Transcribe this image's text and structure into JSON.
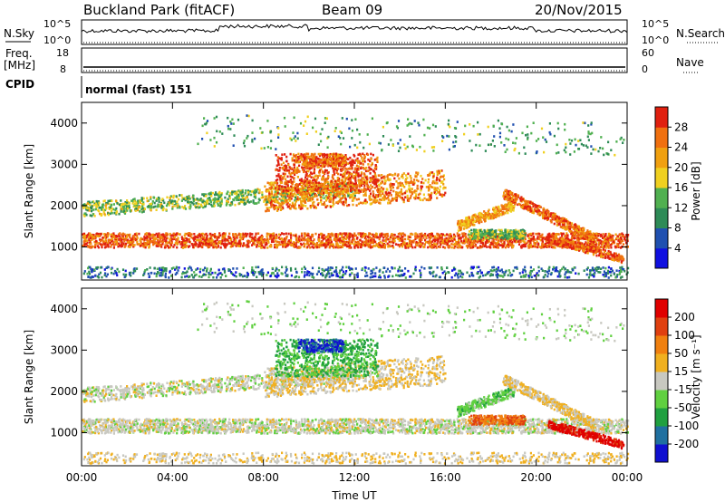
{
  "header": {
    "station": "Buckland Park (fitACF)",
    "beam": "Beam 09",
    "date": "20/Nov/2015"
  },
  "strip": {
    "nsky_label": "N.Sky",
    "nsky_ticks": [
      "10^5",
      "10^0"
    ],
    "nsearch_label": "N.Search",
    "nsearch_ticks": [
      "10^5",
      "10^0"
    ],
    "freq_label": "Freq.",
    "freq_unit": "[MHz]",
    "freq_ticks": [
      "18",
      "8"
    ],
    "nave_label": "Nave",
    "nave_ticks": [
      "60",
      "0"
    ],
    "cpid_label": "CPID",
    "cpid_value": "normal (fast) 151"
  },
  "chart_data": [
    {
      "type": "heatmap",
      "name": "power",
      "ylabel": "Slant Range [km]",
      "ylim": [
        200,
        4500
      ],
      "yticks": [
        "1000",
        "2000",
        "3000",
        "4000"
      ],
      "xlim": [
        "00:00",
        "24:00"
      ],
      "colorbar_label": "Power [dB]",
      "colorbar_ticks": [
        "4",
        "8",
        "12",
        "16",
        "20",
        "24",
        "28"
      ],
      "colorbar_colors": [
        "#1010e0",
        "#2050b0",
        "#2e8b57",
        "#50b050",
        "#f0d020",
        "#f0a010",
        "#f07010",
        "#e02010"
      ]
    },
    {
      "type": "heatmap",
      "name": "velocity",
      "ylabel": "Slant Range [km]",
      "ylim": [
        200,
        4500
      ],
      "yticks": [
        "1000",
        "2000",
        "3000",
        "4000"
      ],
      "xlim": [
        "00:00",
        "24:00"
      ],
      "xlabel": "Time UT",
      "xticks": [
        "00:00",
        "04:00",
        "08:00",
        "12:00",
        "16:00",
        "20:00",
        "00:00"
      ],
      "colorbar_label": "Velocity [m s⁻¹]",
      "colorbar_ticks": [
        "200",
        "100",
        "50",
        "15",
        "-15",
        "-50",
        "-100",
        "-200"
      ],
      "colorbar_colors": [
        "#1010d0",
        "#2070a0",
        "#20a040",
        "#60d040",
        "#c8c8c0",
        "#f0b020",
        "#f08010",
        "#e04010",
        "#e00000"
      ]
    }
  ]
}
